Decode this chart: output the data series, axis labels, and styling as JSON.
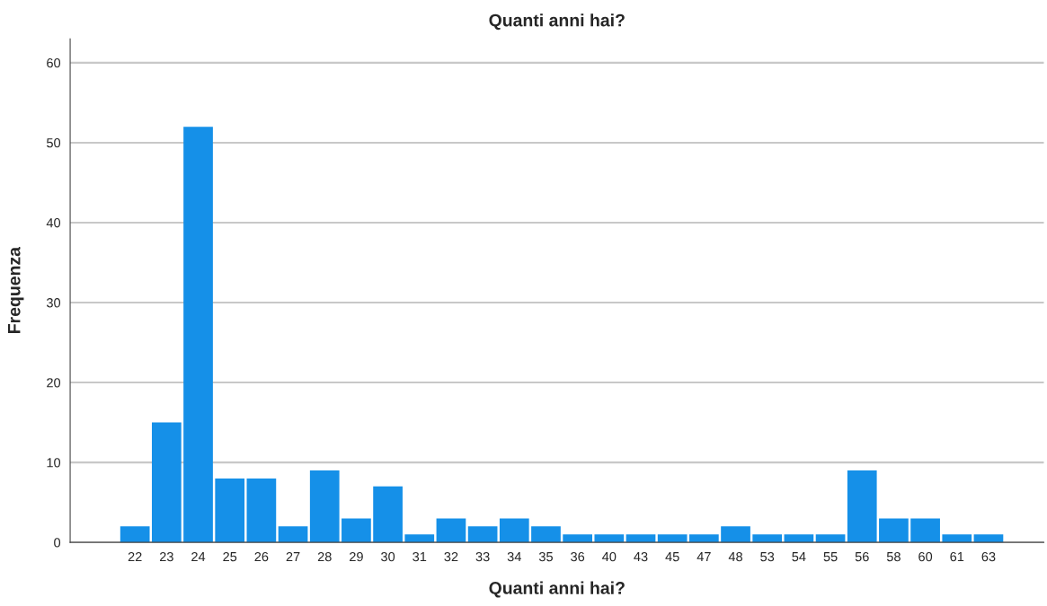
{
  "chart_data": {
    "type": "bar",
    "title": "Quanti anni hai?",
    "xlabel": "Quanti anni hai?",
    "ylabel": "Frequenza",
    "categories": [
      "22",
      "23",
      "24",
      "25",
      "26",
      "27",
      "28",
      "29",
      "30",
      "31",
      "32",
      "33",
      "34",
      "35",
      "36",
      "40",
      "43",
      "45",
      "47",
      "48",
      "53",
      "54",
      "55",
      "56",
      "58",
      "60",
      "61",
      "63"
    ],
    "values": [
      2,
      15,
      52,
      8,
      8,
      2,
      9,
      3,
      7,
      1,
      3,
      2,
      3,
      2,
      1,
      1,
      1,
      1,
      1,
      2,
      1,
      1,
      1,
      9,
      3,
      3,
      1,
      1
    ],
    "color": "#1590e8",
    "ylim": [
      0,
      63
    ],
    "yticks": [
      0,
      10,
      20,
      30,
      40,
      50,
      60
    ],
    "grid": "y"
  }
}
